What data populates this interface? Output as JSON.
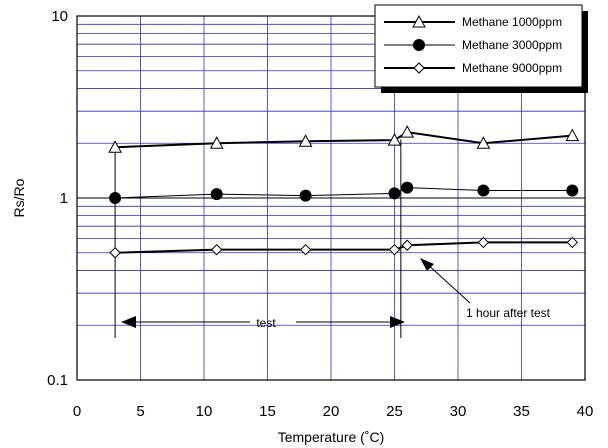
{
  "chart_data": {
    "type": "line",
    "xlabel": "Temperature (˚C)",
    "ylabel": "Rs/Ro",
    "xlim": [
      0,
      40
    ],
    "ylim": [
      0.1,
      10
    ],
    "yscale": "log",
    "grid": true,
    "legend_position": "top-right",
    "x_ticks": [
      "0",
      "5",
      "10",
      "15",
      "20",
      "25",
      "30",
      "35",
      "40"
    ],
    "y_ticks": [
      "0.1",
      "1",
      "10"
    ],
    "series": [
      {
        "name": "Methane 1000ppm",
        "marker": "triangle-open",
        "x": [
          3,
          11,
          18,
          25,
          26,
          32,
          39
        ],
        "y": [
          1.9,
          2.0,
          2.05,
          2.08,
          2.3,
          2.0,
          2.2
        ]
      },
      {
        "name": "Methane 3000ppm",
        "marker": "circle-filled",
        "x": [
          3,
          11,
          18,
          25,
          26,
          32,
          39
        ],
        "y": [
          1.0,
          1.05,
          1.03,
          1.06,
          1.14,
          1.1,
          1.1
        ]
      },
      {
        "name": "Methane 9000ppm",
        "marker": "diamond-open",
        "x": [
          3,
          11,
          18,
          25,
          26,
          32,
          39
        ],
        "y": [
          0.5,
          0.52,
          0.52,
          0.52,
          0.55,
          0.57,
          0.57
        ]
      }
    ],
    "annotations": {
      "test": "test",
      "after_test": "1 hour after test"
    }
  }
}
